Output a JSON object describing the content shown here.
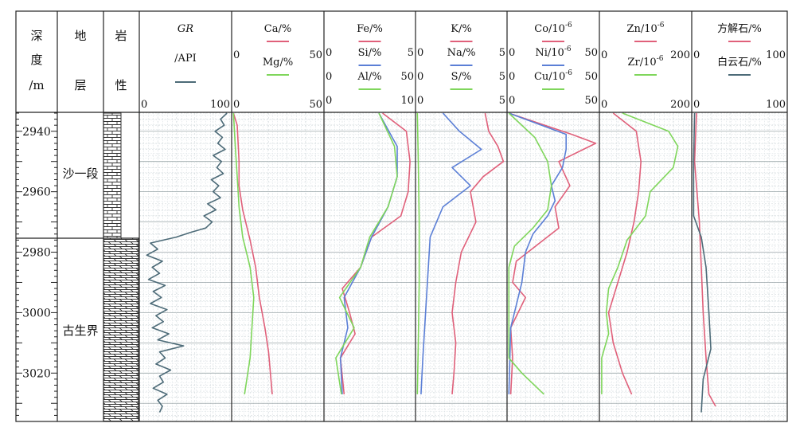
{
  "header": {
    "depth_label": [
      "深",
      "度",
      "/m"
    ],
    "formation_label": [
      "地",
      "层"
    ],
    "lithology_label": [
      "岩",
      "性"
    ]
  },
  "gr_track": {
    "title": "GR",
    "unit": "/API",
    "scale_min": "0",
    "scale_max": "100",
    "color": "#4d6b78"
  },
  "formations": [
    {
      "name": "沙一段",
      "top": 2934,
      "bottom": 2973
    },
    {
      "name": "古生界",
      "top": 2973,
      "bottom": 3036
    }
  ],
  "lithology": [
    {
      "unit": "沙一段",
      "pattern": "brick-limestone"
    },
    {
      "unit": "古生界",
      "pattern": "dolomitic-layered"
    }
  ],
  "depth_axis": {
    "range": [
      2934,
      3036
    ],
    "ticks": [
      2940,
      2960,
      2980,
      3000,
      3020
    ],
    "tick_labels": [
      "2940",
      "2960",
      "2980",
      "3000",
      "3020"
    ]
  },
  "colors": {
    "red": "#e0607a",
    "blue": "#5b7fd6",
    "green": "#7fd65b",
    "gray": "#4d6b78",
    "grid": "#bfc9cc"
  },
  "tracks": [
    {
      "id": "ca-mg",
      "curves": [
        {
          "label": "Ca/%",
          "color": "red",
          "min": "0",
          "max": "50"
        },
        {
          "label": "Mg/%",
          "color": "green",
          "min": "0",
          "max": "50"
        }
      ]
    },
    {
      "id": "fe-si-al",
      "curves": [
        {
          "label": "Fe/%",
          "color": "red",
          "min": "0",
          "max": "5"
        },
        {
          "label": "Si/%",
          "color": "blue",
          "min": "0",
          "max": "50"
        },
        {
          "label": "Al/%",
          "color": "green",
          "min": "0",
          "max": "10"
        }
      ]
    },
    {
      "id": "k-na-s",
      "curves": [
        {
          "label": "K/%",
          "color": "red",
          "min": "0",
          "max": "5"
        },
        {
          "label": "Na/%",
          "color": "blue",
          "min": "0",
          "max": "5"
        },
        {
          "label": "S/%",
          "color": "green",
          "min": "0",
          "max": "5"
        }
      ]
    },
    {
      "id": "co-ni-cu",
      "curves": [
        {
          "label": "Co/10",
          "sup": "-6",
          "color": "red",
          "min": "0",
          "max": "50"
        },
        {
          "label": "Ni/10",
          "sup": "-6",
          "color": "blue",
          "min": "0",
          "max": "50"
        },
        {
          "label": "Cu/10",
          "sup": "-6",
          "color": "green",
          "min": "0",
          "max": "50"
        }
      ]
    },
    {
      "id": "zn-zr",
      "curves": [
        {
          "label": "Zn/10",
          "sup": "-6",
          "color": "red",
          "min": "0",
          "max": "200"
        },
        {
          "label": "Zr/10",
          "sup": "-6",
          "color": "green",
          "min": "0",
          "max": "200"
        }
      ]
    },
    {
      "id": "calcite-dolomite",
      "curves": [
        {
          "label": "方解石/%",
          "color": "red",
          "min": "0",
          "max": "100"
        },
        {
          "label": "白云石/%",
          "color": "gray",
          "min": "0",
          "max": "100"
        }
      ]
    }
  ],
  "chart_data": {
    "type": "line",
    "y_axis": {
      "label": "深度/m",
      "range": [
        2934,
        3036
      ],
      "inverted": true
    },
    "gr": {
      "name": "GR",
      "depth": [
        2934,
        2936,
        2938,
        2940,
        2942,
        2944,
        2946,
        2948,
        2950,
        2952,
        2954,
        2956,
        2958,
        2960,
        2962,
        2964,
        2966,
        2968,
        2970,
        2972,
        2973.5,
        2975,
        2977,
        2979,
        2981,
        2983,
        2985,
        2987,
        2989,
        2991,
        2993,
        2995,
        2997,
        2999,
        3001,
        3003,
        3005,
        3007,
        3009,
        3011,
        3013,
        3015,
        3017,
        3019,
        3021,
        3023,
        3025,
        3027,
        3029,
        3031,
        3033
      ],
      "values": [
        95,
        88,
        92,
        82,
        90,
        85,
        93,
        80,
        89,
        84,
        91,
        78,
        86,
        80,
        88,
        74,
        83,
        70,
        79,
        72,
        55,
        40,
        12,
        20,
        8,
        25,
        14,
        22,
        10,
        28,
        15,
        24,
        12,
        30,
        18,
        26,
        14,
        32,
        20,
        48,
        22,
        28,
        18,
        34,
        22,
        26,
        15,
        30,
        20,
        25,
        22
      ]
    },
    "curves": [
      {
        "name": "Ca/%",
        "track": "ca-mg",
        "xlim": [
          0,
          50
        ],
        "depth": [
          2934,
          2938,
          2950,
          2958,
          2966,
          2976,
          2985,
          2995,
          3005,
          3013,
          3027
        ],
        "values": [
          1,
          3,
          4,
          4,
          6,
          10,
          13,
          15,
          18,
          20,
          22
        ]
      },
      {
        "name": "Mg/%",
        "track": "ca-mg",
        "xlim": [
          0,
          50
        ],
        "depth": [
          2934,
          2945,
          2955,
          2965,
          2975,
          2985,
          2995,
          3005,
          3015,
          3027
        ],
        "values": [
          1,
          2,
          3,
          4,
          6,
          10,
          12,
          11,
          10,
          7
        ]
      },
      {
        "name": "Fe/%",
        "track": "fe-si-al",
        "xlim": [
          0,
          5
        ],
        "depth": [
          2934,
          2940,
          2950,
          2960,
          2968,
          2975,
          2985,
          2992,
          3000,
          3007,
          3015,
          3027
        ],
        "values": [
          3.2,
          4.5,
          4.7,
          4.6,
          4.2,
          2.6,
          2.0,
          1.0,
          1.4,
          1.7,
          0.9,
          1.1
        ]
      },
      {
        "name": "Si/%",
        "track": "fe-si-al",
        "xlim": [
          0,
          50
        ],
        "depth": [
          2934,
          2945,
          2955,
          2965,
          2975,
          2985,
          2995,
          3005,
          3015,
          3027
        ],
        "values": [
          30,
          40,
          40,
          35,
          26,
          20,
          11,
          13,
          9,
          10
        ]
      },
      {
        "name": "Al/%",
        "track": "fe-si-al",
        "xlim": [
          0,
          10
        ],
        "depth": [
          2934,
          2945,
          2955,
          2965,
          2975,
          2985,
          2995,
          3005,
          3015,
          3027
        ],
        "values": [
          6,
          7.7,
          8,
          7,
          5,
          4,
          1.7,
          3.3,
          1.3,
          1.9
        ]
      },
      {
        "name": "K/%",
        "track": "k-na-s",
        "xlim": [
          0,
          5
        ],
        "depth": [
          2934,
          2940,
          2945,
          2950,
          2955,
          2960,
          2970,
          2980,
          2990,
          3000,
          3010,
          3020,
          3027
        ],
        "values": [
          3.8,
          4.0,
          4.5,
          4.8,
          3.7,
          3.0,
          3.3,
          2.5,
          2.2,
          2.0,
          2.2,
          2.1,
          2.0
        ]
      },
      {
        "name": "Na/%",
        "track": "k-na-s",
        "xlim": [
          0,
          5
        ],
        "depth": [
          2934,
          2940,
          2946,
          2952,
          2958,
          2965,
          2975,
          2985,
          2995,
          3005,
          3015,
          3027
        ],
        "values": [
          1.5,
          2.4,
          3.6,
          2.0,
          3.0,
          1.5,
          0.8,
          0.7,
          0.6,
          0.5,
          0.4,
          0.3
        ]
      },
      {
        "name": "S/%",
        "track": "k-na-s",
        "xlim": [
          0,
          5
        ],
        "depth": [
          2934,
          2950,
          2970,
          2990,
          3010,
          3027
        ],
        "values": [
          0.1,
          0.15,
          0.2,
          0.2,
          0.15,
          0.1
        ]
      },
      {
        "name": "Co/10^-6",
        "track": "co-ni-cu",
        "xlim": [
          0,
          50
        ],
        "depth": [
          2934,
          2941,
          2944,
          2950,
          2958,
          2965,
          2972,
          2983,
          2990,
          2995,
          3005,
          3015,
          3027
        ],
        "values": [
          1,
          35,
          48,
          28,
          34,
          26,
          28,
          5,
          3,
          10,
          2,
          3,
          2
        ]
      },
      {
        "name": "Ni/10^-6",
        "track": "co-ni-cu",
        "xlim": [
          0,
          50
        ],
        "depth": [
          2934,
          2941,
          2946,
          2952,
          2958,
          2963,
          2968,
          2974,
          2980,
          2990,
          3005,
          3027
        ],
        "values": [
          1,
          32,
          32,
          30,
          24,
          26,
          22,
          14,
          10,
          8,
          2,
          1
        ]
      },
      {
        "name": "Cu/10^-6",
        "track": "co-ni-cu",
        "xlim": [
          0,
          50
        ],
        "depth": [
          2934,
          2942,
          2950,
          2958,
          2966,
          2972,
          2978,
          2985,
          2995,
          3015,
          3020,
          3027
        ],
        "values": [
          1,
          15,
          22,
          24,
          22,
          14,
          4,
          1,
          1,
          1,
          8,
          20
        ]
      },
      {
        "name": "Zn/10^-6",
        "track": "zn-zr",
        "xlim": [
          0,
          200
        ],
        "depth": [
          2934,
          2940,
          2950,
          2960,
          2970,
          2980,
          2990,
          3000,
          3010,
          3020,
          3027
        ],
        "values": [
          30,
          80,
          90,
          85,
          75,
          60,
          40,
          20,
          30,
          50,
          70
        ]
      },
      {
        "name": "Zr/10^-6",
        "track": "zn-zr",
        "xlim": [
          0,
          200
        ],
        "depth": [
          2934,
          2940,
          2945,
          2952,
          2960,
          2968,
          2976,
          2985,
          2992,
          3000,
          3007,
          3015,
          3027
        ],
        "values": [
          50,
          150,
          170,
          160,
          110,
          100,
          60,
          40,
          20,
          15,
          20,
          5,
          5
        ]
      },
      {
        "name": "方解石/%",
        "track": "calcite-dolomite",
        "xlim": [
          0,
          100
        ],
        "depth": [
          2934,
          2950,
          2970,
          2985,
          3000,
          3015,
          3027,
          3031
        ],
        "values": [
          5,
          3,
          8,
          10,
          12,
          15,
          18,
          25
        ]
      },
      {
        "name": "白云石/%",
        "track": "calcite-dolomite",
        "xlim": [
          0,
          100
        ],
        "depth": [
          2934,
          2950,
          2968,
          2975,
          2985,
          3000,
          3012,
          3022,
          3033
        ],
        "values": [
          3,
          2,
          2,
          10,
          15,
          18,
          20,
          12,
          10
        ]
      }
    ]
  }
}
